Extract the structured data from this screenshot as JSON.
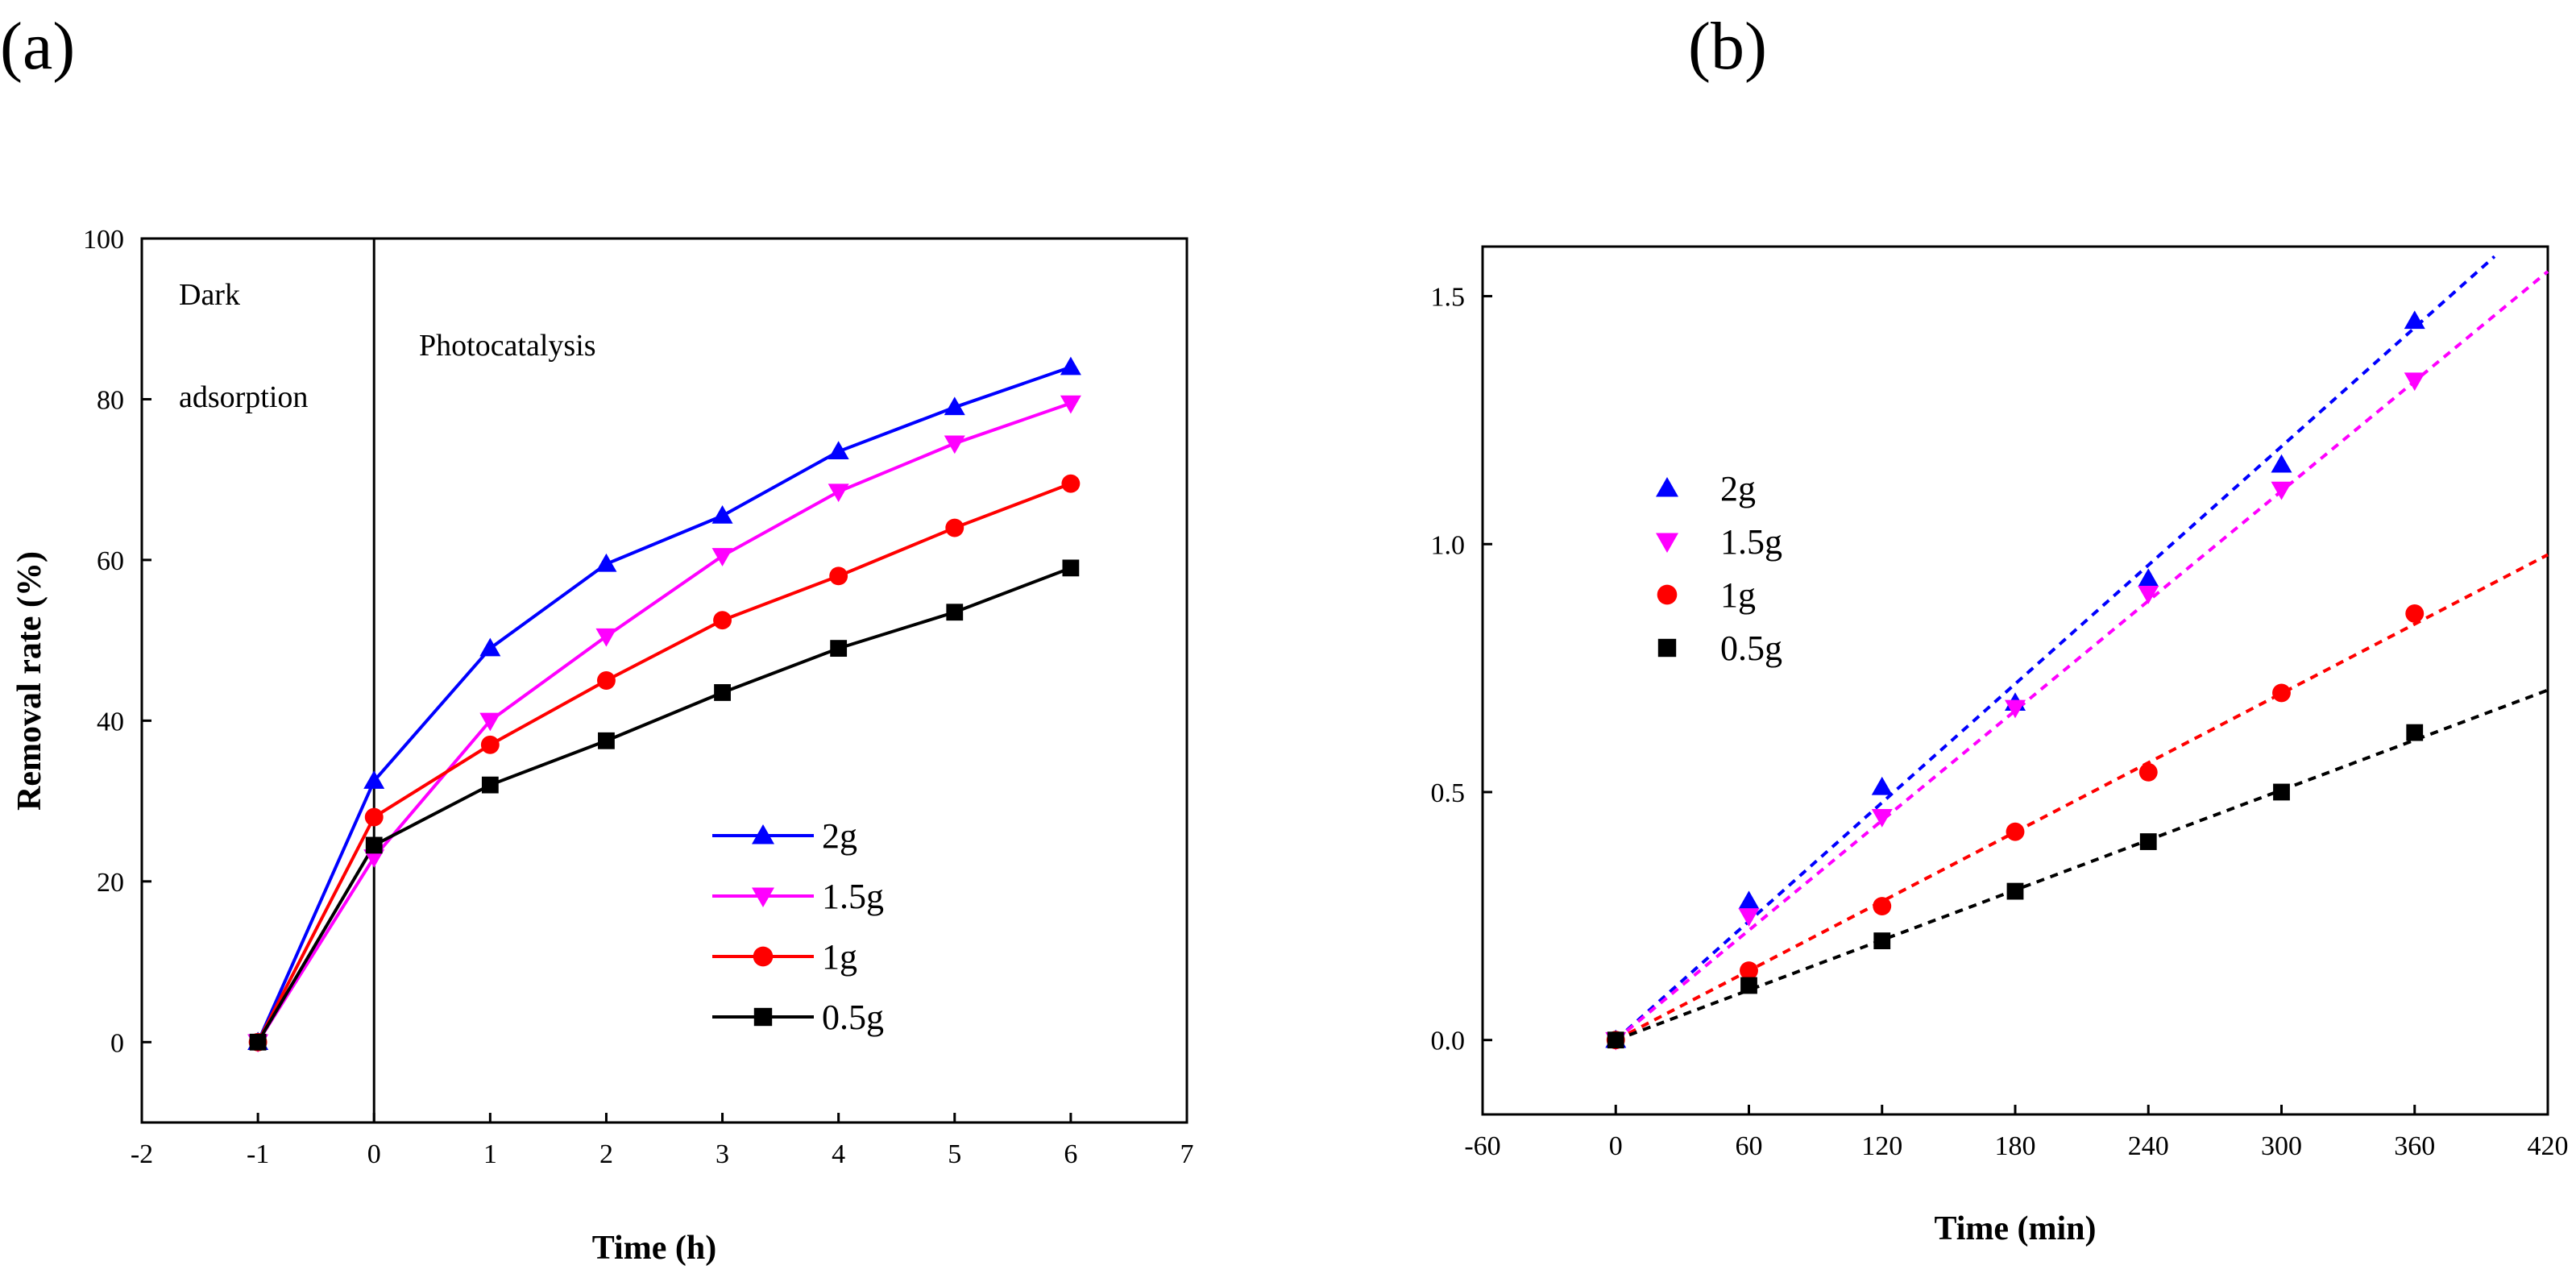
{
  "chart_data": [
    {
      "panel": "(a)",
      "type": "line",
      "xlabel": "Time (h)",
      "ylabel": "Removal rate (%)",
      "xlim": [
        -2,
        7
      ],
      "ylim": [
        -10,
        100
      ],
      "xticks": [
        "-2",
        "-1",
        "0",
        "1",
        "2",
        "3",
        "4",
        "5",
        "6",
        "7"
      ],
      "yticks": [
        "0",
        "20",
        "40",
        "60",
        "80",
        "100"
      ],
      "annotations": [
        "Dark",
        "adsorption",
        "Photocatalysis"
      ],
      "divider_x": 0,
      "legend_position": "bottom-right",
      "x": [
        -1,
        0,
        1,
        2,
        3,
        4,
        5,
        6
      ],
      "series": [
        {
          "name": "2g",
          "color": "#0000ff",
          "marker": "triangle-up",
          "values": [
            0,
            32.5,
            49,
            59.5,
            65.5,
            73.5,
            79,
            84
          ]
        },
        {
          "name": "1.5g",
          "color": "#ff00ff",
          "marker": "triangle-down",
          "values": [
            0,
            23,
            40,
            50.5,
            60.5,
            68.5,
            74.5,
            79.5
          ]
        },
        {
          "name": "1g",
          "color": "#ff0000",
          "marker": "circle",
          "values": [
            0,
            28,
            37,
            45,
            52.5,
            58,
            64,
            69.5
          ]
        },
        {
          "name": "0.5g",
          "color": "#000000",
          "marker": "square",
          "values": [
            0,
            24.5,
            32,
            37.5,
            43.5,
            49,
            53.5,
            59
          ]
        }
      ]
    },
    {
      "panel": "(b)",
      "type": "scatter",
      "xlabel": "Time (min)",
      "ylabel": "",
      "xlim": [
        -60,
        420
      ],
      "ylim": [
        -0.15,
        1.6
      ],
      "xticks": [
        "-60",
        "0",
        "60",
        "120",
        "180",
        "240",
        "300",
        "360",
        "420"
      ],
      "yticks": [
        "0.0",
        "0.5",
        "1.0",
        "1.5"
      ],
      "legend_position": "upper-left",
      "x": [
        0,
        60,
        120,
        180,
        240,
        300,
        360
      ],
      "series": [
        {
          "name": "2g",
          "color": "#0000ff",
          "marker": "triangle-up",
          "values": [
            0,
            0.28,
            0.51,
            0.68,
            0.93,
            1.16,
            1.45
          ],
          "fit_slope": 0.00399
        },
        {
          "name": "1.5g",
          "color": "#ff00ff",
          "marker": "triangle-down",
          "values": [
            0,
            0.25,
            0.45,
            0.67,
            0.9,
            1.11,
            1.33
          ],
          "fit_slope": 0.00369
        },
        {
          "name": "1g",
          "color": "#ff0000",
          "marker": "circle",
          "values": [
            0,
            0.14,
            0.27,
            0.42,
            0.54,
            0.7,
            0.86
          ],
          "fit_slope": 0.00233
        },
        {
          "name": "0.5g",
          "color": "#000000",
          "marker": "square",
          "values": [
            0,
            0.11,
            0.2,
            0.3,
            0.4,
            0.5,
            0.62
          ],
          "fit_slope": 0.00168
        }
      ]
    }
  ]
}
